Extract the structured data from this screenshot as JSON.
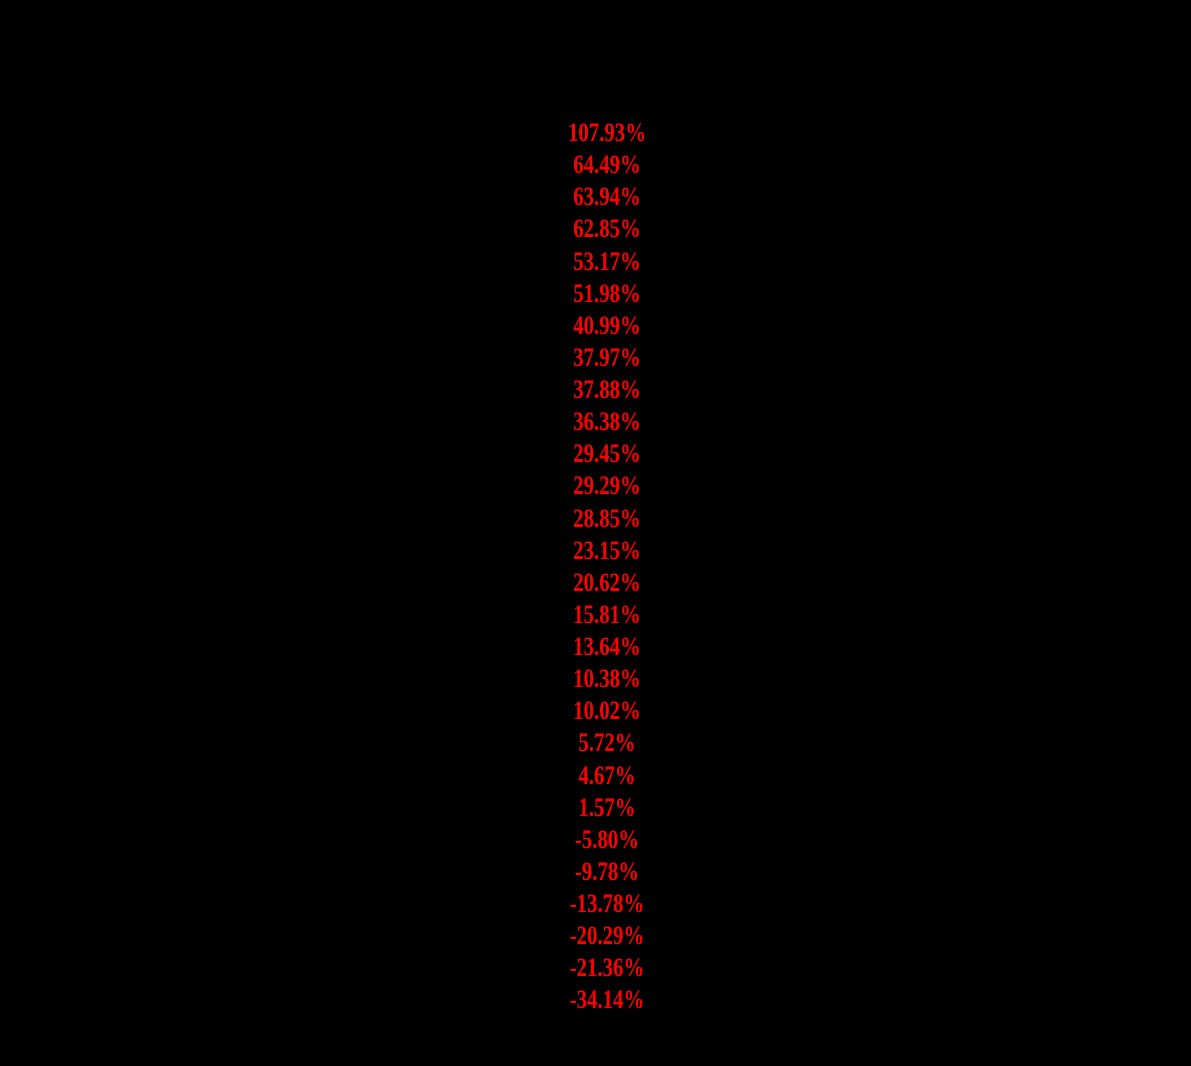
{
  "canvas": {
    "background_color": "#000000"
  },
  "pct_column": {
    "description": "Only visible content: a single centered column of percent-change values (rest of the source table text is black-on-black / invisible).",
    "text_color": "#ff0000",
    "values": [
      "107.93%",
      "64.49%",
      "63.94%",
      "62.85%",
      "53.17%",
      "51.98%",
      "40.99%",
      "37.97%",
      "37.88%",
      "36.38%",
      "29.45%",
      "29.29%",
      "28.85%",
      "23.15%",
      "20.62%",
      "15.81%",
      "13.64%",
      "10.38%",
      "10.02%",
      "5.72%",
      "4.67%",
      "1.57%",
      "-5.80%",
      "-9.78%",
      "-13.78%",
      "-20.29%",
      "-21.36%",
      "-34.14%"
    ]
  },
  "chart_data": {
    "type": "table",
    "title": "",
    "columns": [
      "percent_change"
    ],
    "values_percent": [
      107.93,
      64.49,
      63.94,
      62.85,
      53.17,
      51.98,
      40.99,
      37.97,
      37.88,
      36.38,
      29.45,
      29.29,
      28.85,
      23.15,
      20.62,
      15.81,
      13.64,
      10.38,
      10.02,
      5.72,
      4.67,
      1.57,
      -5.8,
      -9.78,
      -13.78,
      -20.29,
      -21.36,
      -34.14
    ]
  }
}
